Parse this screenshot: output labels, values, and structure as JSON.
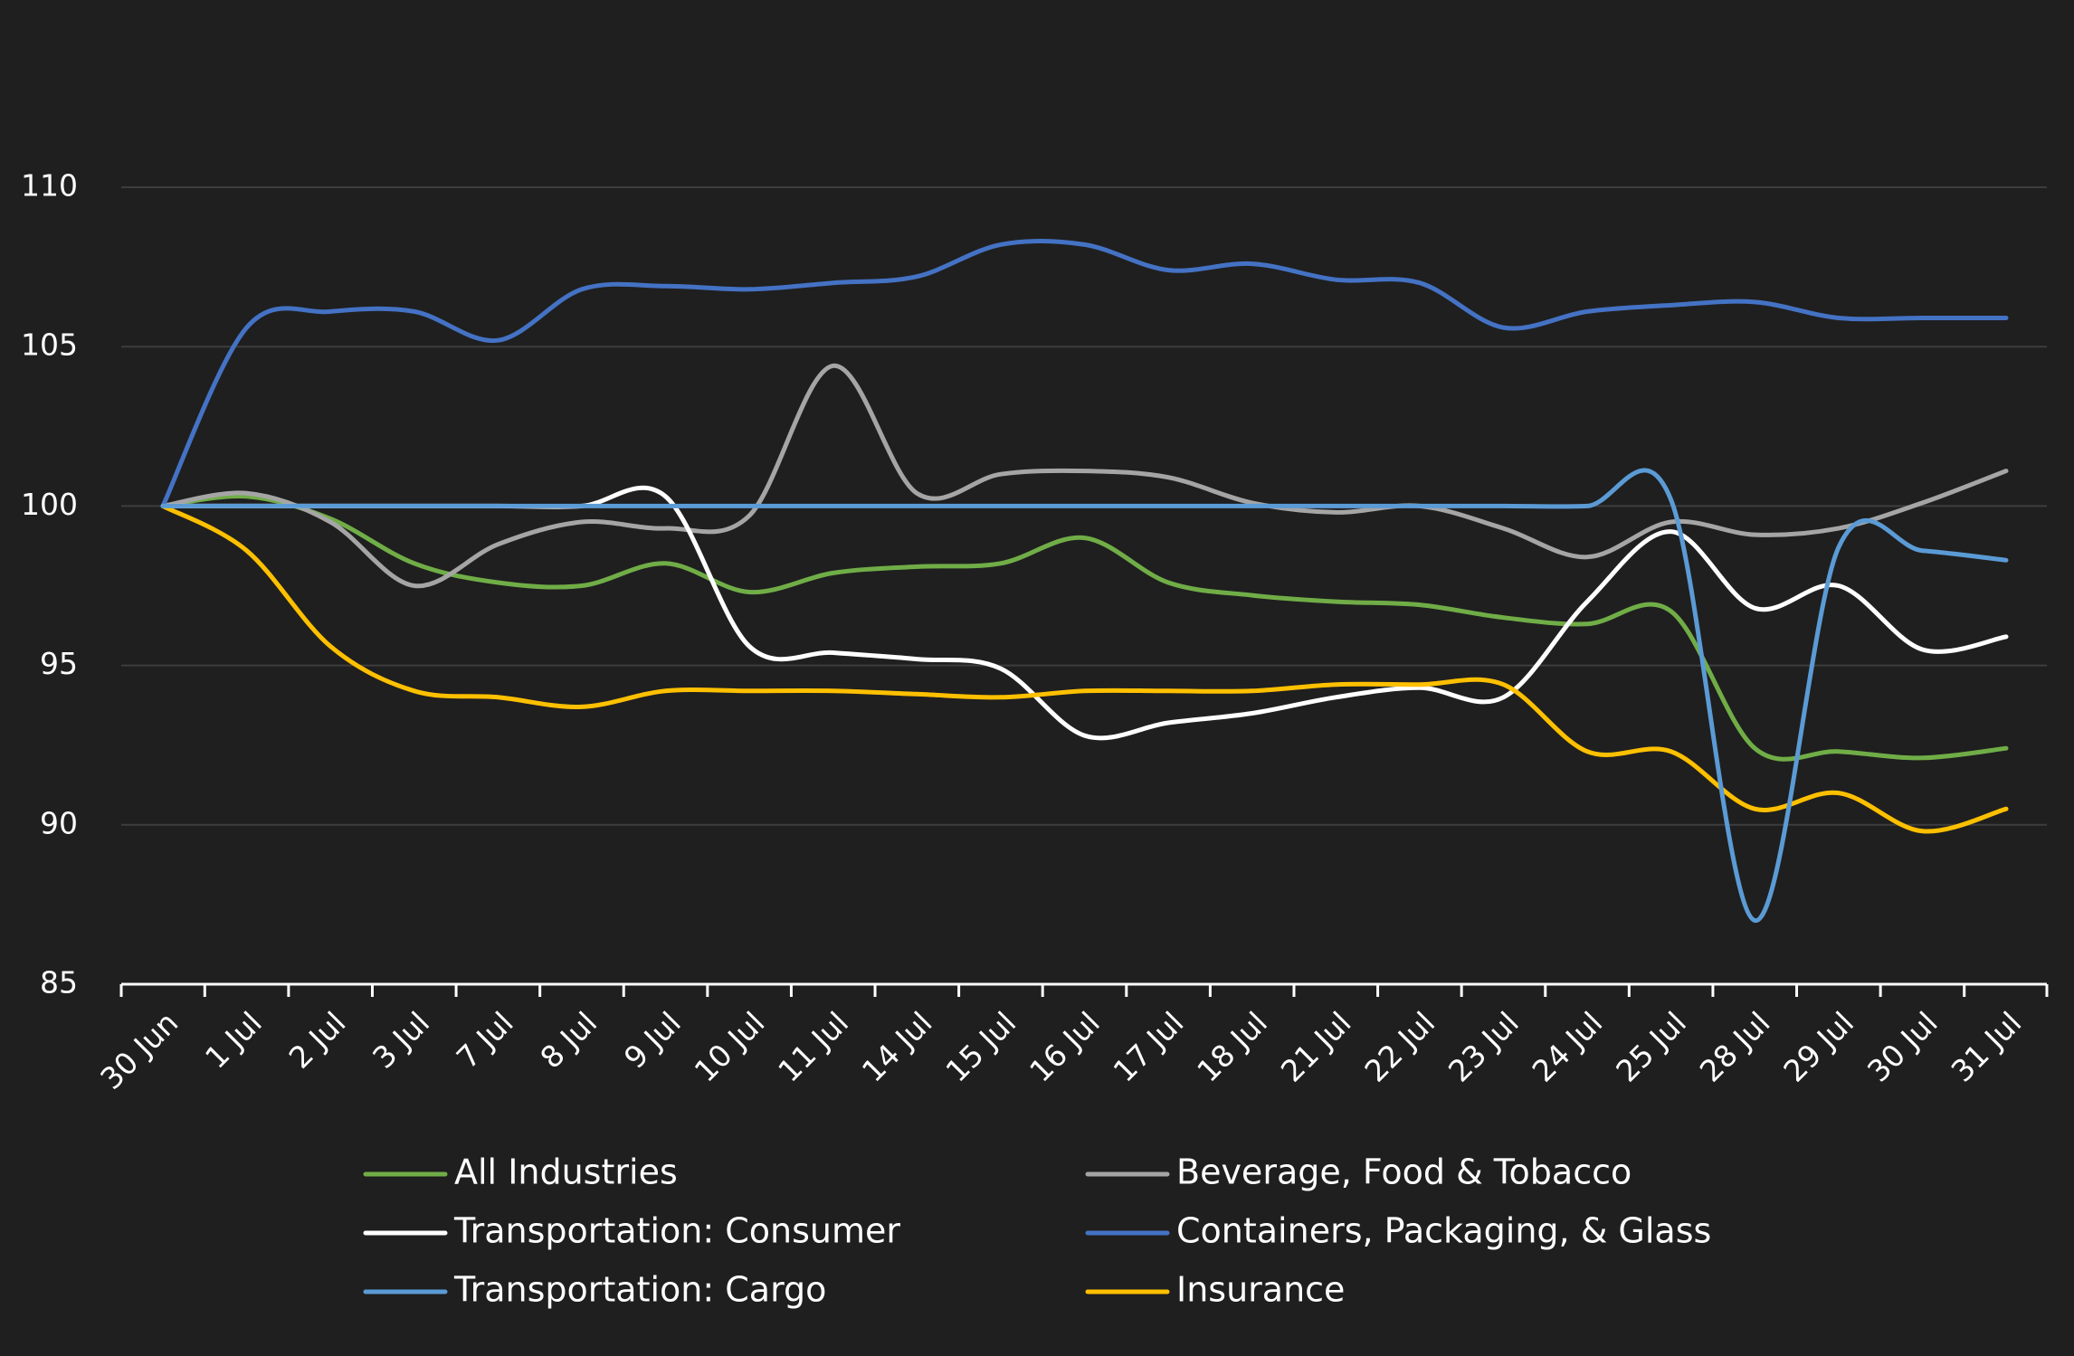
{
  "chart_data": {
    "type": "line",
    "categories": [
      "30 Jun",
      "1 Jul",
      "2 Jul",
      "3 Jul",
      "7 Jul",
      "8 Jul",
      "9 Jul",
      "10 Jul",
      "11 Jul",
      "14 Jul",
      "15 Jul",
      "16 Jul",
      "17 Jul",
      "18 Jul",
      "21 Jul",
      "22 Jul",
      "23 Jul",
      "24 Jul",
      "25 Jul",
      "28 Jul",
      "29 Jul",
      "30 Jul",
      "31 Jul"
    ],
    "ylim": [
      85,
      110
    ],
    "yticks": [
      85,
      90,
      95,
      100,
      105,
      110
    ],
    "grid": true,
    "legend_position": "bottom",
    "series": [
      {
        "name": "All Industries",
        "color": "#70ad47",
        "values": [
          100,
          100.3,
          99.6,
          98.2,
          97.6,
          97.5,
          98.2,
          97.3,
          97.9,
          98.1,
          98.2,
          99.0,
          97.6,
          97.2,
          97.0,
          96.9,
          96.5,
          96.3,
          96.7,
          92.4,
          92.3,
          92.1,
          92.4
        ]
      },
      {
        "name": "Beverage, Food & Tobacco",
        "color": "#a5a5a5",
        "values": [
          100,
          100.4,
          99.5,
          97.5,
          98.8,
          99.5,
          99.3,
          99.7,
          104.4,
          100.4,
          101.0,
          101.1,
          100.9,
          100.1,
          99.8,
          100.0,
          99.3,
          98.4,
          99.5,
          99.1,
          99.3,
          100.1,
          101.1
        ]
      },
      {
        "name": "Transportation: Consumer",
        "color": "#ffffff",
        "values": [
          100,
          100,
          100,
          100,
          100,
          100,
          100.3,
          95.6,
          95.4,
          95.2,
          94.9,
          92.8,
          93.2,
          93.5,
          94.0,
          94.3,
          94.0,
          97.0,
          99.2,
          96.8,
          97.5,
          95.5,
          95.9
        ]
      },
      {
        "name": "Containers, Packaging, & Glass",
        "color": "#4472c4",
        "values": [
          100,
          105.6,
          106.1,
          106.1,
          105.2,
          106.8,
          106.9,
          106.8,
          107.0,
          107.2,
          108.2,
          108.2,
          107.4,
          107.6,
          107.1,
          107.0,
          105.6,
          106.1,
          106.3,
          106.4,
          105.9,
          105.9,
          105.9
        ]
      },
      {
        "name": "Transportation: Cargo",
        "color": "#5b9bd5",
        "values": [
          100,
          100,
          100,
          100,
          100,
          100,
          100,
          100,
          100,
          100,
          100,
          100,
          100,
          100,
          100,
          100,
          100,
          100,
          100.2,
          87.0,
          98.7,
          98.6,
          98.3
        ]
      },
      {
        "name": "Insurance",
        "color": "#ffc000",
        "values": [
          100,
          98.6,
          95.6,
          94.2,
          94.0,
          93.7,
          94.2,
          94.2,
          94.2,
          94.1,
          94.0,
          94.2,
          94.2,
          94.2,
          94.4,
          94.4,
          94.4,
          92.3,
          92.3,
          90.5,
          91.0,
          89.8,
          90.5
        ]
      }
    ],
    "style": {
      "background": "#1f1f1f",
      "gridline_color": "#3d3d3d",
      "axis_color": "#ffffff",
      "text_color": "#ffffff"
    }
  }
}
